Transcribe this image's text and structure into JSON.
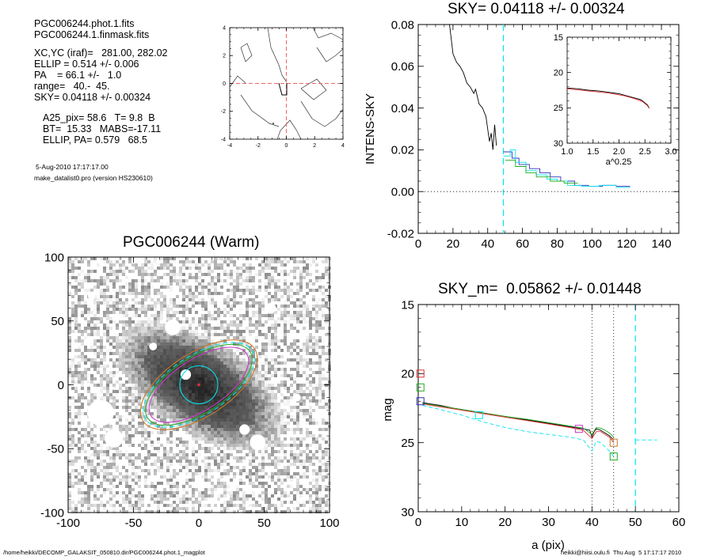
{
  "info_block": {
    "file": "PGC006244.phot.1.fits",
    "mask": "PGC006244.1.finmask.fits",
    "xcyc": "XC,YC (iraf)=   281.00, 282.02",
    "ellip": "ELLIP = 0.514 +/- 0.006",
    "pa": "PA    = 66.1 +/-   1.0",
    "range": "range=   40.-  45.",
    "sky": "SKY= 0.04118 +/- 0.00324",
    "a25": "A25_pix= 58.6   T= 9.8  B",
    "bt": "BT=  15.33   MABS=-17.11",
    "ellip_pa": "ELLIP, PA= 0.579   68.5",
    "date": "5-Aug-2010 17:17:17.00",
    "program": "make_datalist0.pro (version HS230610)"
  },
  "footer": {
    "path": "/home/heikki/DECOMP_GALAKSIT_050810.dir/PGC006244.phot.1_magplot",
    "user_stamp": "heikki@hiisi.oulu.fi  Thu Aug  5 17:17:17 2010"
  },
  "colors": {
    "axis": "#000000",
    "cyan": "#00e5ee",
    "green": "#22aa22",
    "red": "#e03030",
    "blue": "#3030c0",
    "orange": "#cc7722",
    "magenta": "#cc33cc",
    "pink_dash": "#ee6666"
  },
  "chart_data": [
    {
      "id": "contour_panel",
      "type": "contour",
      "title": "",
      "xlabel": "",
      "ylabel": "",
      "xlim": [
        -4,
        4
      ],
      "ylim": [
        -4,
        4
      ],
      "xticks": [
        "-4",
        "-2",
        "0",
        "2",
        "4"
      ],
      "yticks": [
        "4",
        "2",
        "0",
        "-2",
        "-4"
      ],
      "center_marker": [
        0,
        0
      ]
    },
    {
      "id": "sky_profile",
      "type": "line",
      "title": "SKY= 0.04118 +/- 0.00324",
      "xlabel": "",
      "ylabel": "INTENS-SKY",
      "xlim": [
        0,
        150
      ],
      "ylim": [
        -0.02,
        0.08
      ],
      "xticks": [
        "0",
        "20",
        "40",
        "60",
        "80",
        "100",
        "120",
        "140"
      ],
      "yticks": [
        "0.08",
        "0.06",
        "0.04",
        "0.02",
        "0.00",
        "-0.02"
      ],
      "vline": 49,
      "series": [
        {
          "color": "black",
          "x": [
            18,
            20,
            22,
            24,
            26,
            28,
            30,
            32,
            33,
            35,
            37,
            39,
            40,
            41,
            42,
            43,
            44,
            45
          ],
          "y": [
            0.08,
            0.066,
            0.062,
            0.06,
            0.057,
            0.052,
            0.05,
            0.047,
            0.049,
            0.042,
            0.04,
            0.036,
            0.03,
            0.024,
            0.028,
            0.02,
            0.032,
            0.022
          ]
        },
        {
          "color": "blue",
          "x": [
            49,
            54,
            54,
            58,
            58,
            64,
            64,
            70,
            70,
            76,
            76,
            82,
            82,
            90,
            90,
            98,
            98,
            106,
            106,
            114,
            114,
            122
          ],
          "y": [
            0.019,
            0.019,
            0.016,
            0.016,
            0.013,
            0.013,
            0.011,
            0.011,
            0.009,
            0.009,
            0.007,
            0.007,
            0.005,
            0.005,
            0.003,
            0.003,
            0.0025,
            0.0025,
            0.003,
            0.003,
            0.0025,
            0.0025
          ]
        },
        {
          "color": "cyan",
          "x": [
            49,
            53,
            53,
            56,
            56,
            62,
            62,
            68,
            68,
            74,
            74,
            80,
            80,
            86,
            86,
            94,
            94,
            104,
            104,
            114,
            114,
            122
          ],
          "y": [
            0.017,
            0.017,
            0.02,
            0.02,
            0.014,
            0.014,
            0.01,
            0.01,
            0.008,
            0.008,
            0.006,
            0.006,
            0.005,
            0.005,
            0.003,
            0.003,
            0.0025,
            0.0025,
            0.003,
            0.003,
            0.002,
            0.002
          ]
        },
        {
          "color": "green",
          "x": [
            50,
            56,
            56,
            62,
            62,
            68,
            68,
            76,
            76,
            84,
            84,
            92
          ],
          "y": [
            0.015,
            0.015,
            0.012,
            0.012,
            0.009,
            0.009,
            0.007,
            0.007,
            0.005,
            0.005,
            0.004,
            0.004
          ]
        }
      ]
    },
    {
      "id": "sky_inset",
      "type": "line",
      "title": "",
      "xlabel": "a^0.25",
      "ylabel": "",
      "xlim": [
        1.0,
        3.0
      ],
      "ylim": [
        30,
        15
      ],
      "xticks": [
        "1.0",
        "1.5",
        "2.0",
        "2.5",
        "3.0"
      ],
      "yticks": [
        "15",
        "20",
        "25",
        "30"
      ],
      "series": [
        {
          "color": "black",
          "x": [
            1.0,
            1.2,
            1.4,
            1.6,
            1.8,
            2.0,
            2.1,
            2.2,
            2.3,
            2.4,
            2.45,
            2.5,
            2.55,
            2.58
          ],
          "y": [
            22.2,
            22.3,
            22.5,
            22.6,
            22.8,
            23.0,
            23.2,
            23.4,
            23.6,
            23.8,
            24.0,
            24.3,
            24.6,
            25.0
          ]
        },
        {
          "color": "red",
          "x": [
            1.0,
            1.4,
            1.8,
            2.1,
            2.3,
            2.45,
            2.55,
            2.58
          ],
          "y": [
            22.3,
            22.6,
            22.9,
            23.3,
            23.7,
            24.1,
            24.7,
            25.1
          ]
        }
      ]
    },
    {
      "id": "galaxy_image",
      "type": "image",
      "title": "PGC006244 (Warm)",
      "xlabel": "",
      "ylabel": "",
      "xlim": [
        -100,
        100
      ],
      "ylim": [
        -100,
        100
      ],
      "xticks": [
        "-100",
        "-50",
        "0",
        "50",
        "100"
      ],
      "yticks": [
        "100",
        "50",
        "0",
        "-50",
        "-100"
      ]
    },
    {
      "id": "mag_profile",
      "type": "line",
      "title": "SKY_m=  0.05862 +/- 0.01448",
      "xlabel": "a (pix)",
      "ylabel": "mag",
      "xlim": [
        0,
        60
      ],
      "ylim": [
        30,
        15
      ],
      "xticks": [
        "0",
        "10",
        "20",
        "30",
        "40",
        "50",
        "60"
      ],
      "yticks": [
        "15",
        "20",
        "25",
        "30"
      ],
      "vlines_dotted": [
        40,
        45
      ],
      "vline_dashed": 50,
      "series": [
        {
          "color": "black",
          "x": [
            1,
            3,
            5,
            8,
            10,
            12,
            14,
            16,
            18,
            20,
            22,
            24,
            26,
            28,
            30,
            32,
            34,
            36,
            38,
            39.5,
            40,
            40.5,
            41,
            42,
            43,
            44,
            45
          ],
          "y": [
            22.1,
            22.2,
            22.3,
            22.5,
            22.6,
            22.7,
            22.8,
            22.9,
            23.0,
            23.1,
            23.2,
            23.3,
            23.4,
            23.5,
            23.6,
            23.7,
            23.8,
            23.9,
            24.0,
            24.1,
            24.6,
            24.2,
            24.0,
            24.1,
            24.3,
            24.5,
            24.8
          ]
        },
        {
          "color": "green",
          "x": [
            1,
            5,
            10,
            15,
            20,
            25,
            30,
            35,
            38,
            40,
            41,
            42,
            43,
            44,
            45
          ],
          "y": [
            22.15,
            22.35,
            22.6,
            22.85,
            23.1,
            23.3,
            23.55,
            23.8,
            23.95,
            24.4,
            23.9,
            23.95,
            24.1,
            24.3,
            24.6
          ]
        },
        {
          "color": "red",
          "x": [
            1,
            5,
            10,
            15,
            20,
            25,
            30,
            35,
            38,
            40,
            41,
            42,
            43,
            44,
            45
          ],
          "y": [
            22.2,
            22.4,
            22.65,
            22.9,
            23.15,
            23.4,
            23.65,
            23.9,
            24.1,
            24.7,
            24.2,
            24.2,
            24.4,
            24.6,
            25.0
          ]
        },
        {
          "color": "cyan",
          "dashed": true,
          "x": [
            1,
            5,
            10,
            15,
            20,
            25,
            30,
            35,
            38,
            40,
            41,
            42,
            43,
            44,
            45
          ],
          "y": [
            22.3,
            22.6,
            23.0,
            23.5,
            23.9,
            24.2,
            24.4,
            24.6,
            24.8,
            25.6,
            24.9,
            25.0,
            25.3,
            25.6,
            26.0
          ]
        },
        {
          "color": "cyan",
          "dashed": true,
          "x": [
            50,
            55
          ],
          "y": [
            24.8,
            24.8
          ]
        }
      ],
      "markers": [
        {
          "color": "red",
          "x": 0.5,
          "y": 20.0
        },
        {
          "color": "green",
          "x": 0.5,
          "y": 21.0
        },
        {
          "color": "blue",
          "x": 0.5,
          "y": 22.0
        },
        {
          "color": "cyan",
          "x": 14,
          "y": 23.0
        },
        {
          "color": "magenta",
          "x": 37,
          "y": 24.0
        },
        {
          "color": "orange",
          "x": 45,
          "y": 25.0
        },
        {
          "color": "green",
          "x": 45,
          "y": 26.0
        }
      ]
    }
  ]
}
